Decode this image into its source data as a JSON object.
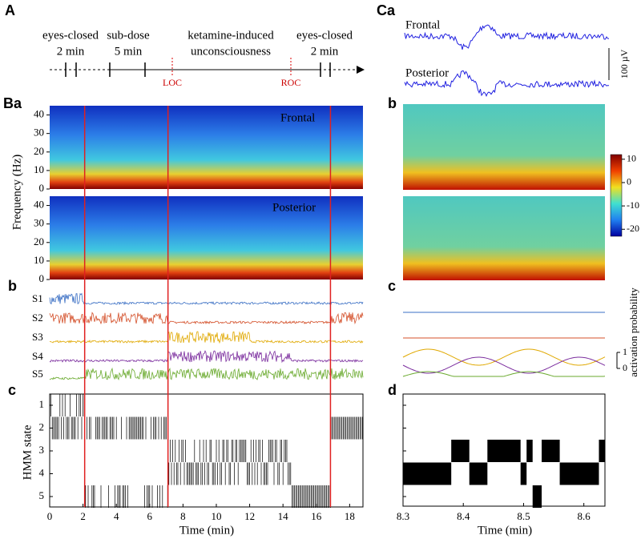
{
  "panel_labels": {
    "A": "A",
    "Ca": "Ca",
    "Ba": "Ba",
    "Bb": "b",
    "Bc": "c",
    "Cb": "b",
    "Cc": "c",
    "Cd": "d"
  },
  "timeline": {
    "segments": [
      [
        "eyes-closed",
        "2 min"
      ],
      [
        "sub-dose",
        "5 min"
      ],
      [
        "ketamine-induced",
        "unconsciousness"
      ],
      [
        "eyes-closed",
        "2 min"
      ]
    ],
    "markers": [
      "LOC",
      "ROC"
    ]
  },
  "eeg": {
    "channels": [
      "Frontal",
      "Posterior"
    ],
    "scale": "100 µV"
  },
  "spectrogram": {
    "ylabel": "Frequency (Hz)",
    "ylim": [
      0,
      45
    ],
    "yticks": [
      0,
      10,
      20,
      30,
      40
    ],
    "titles": [
      "Frontal",
      "Posterior"
    ]
  },
  "colorbar": {
    "lim": [
      -23,
      12
    ],
    "ticks": [
      10,
      0,
      -10,
      -20
    ]
  },
  "states": [
    {
      "name": "S1",
      "color": "#3a6fc4"
    },
    {
      "name": "S2",
      "color": "#d4502a"
    },
    {
      "name": "S3",
      "color": "#e0a800"
    },
    {
      "name": "S4",
      "color": "#7b2d9e"
    },
    {
      "name": "S5",
      "color": "#6aaa2e"
    }
  ],
  "activation": {
    "label": "activation probability",
    "ticks": [
      1,
      0
    ]
  },
  "hmm": {
    "ylabel": "HMM state",
    "yticks": [
      1,
      2,
      3,
      4,
      5
    ]
  },
  "time_left": {
    "xlabel": "Time (min)",
    "xlim": [
      0,
      18.8
    ],
    "xticks": [
      0,
      2,
      4,
      6,
      8,
      10,
      12,
      14,
      16,
      18
    ],
    "events": [
      2.1,
      7.1,
      16.85
    ]
  },
  "time_right": {
    "xlabel": "Time (min)",
    "xlim": [
      8.3,
      8.635
    ],
    "xticks": [
      8.3,
      8.4,
      8.5,
      8.6
    ]
  }
}
